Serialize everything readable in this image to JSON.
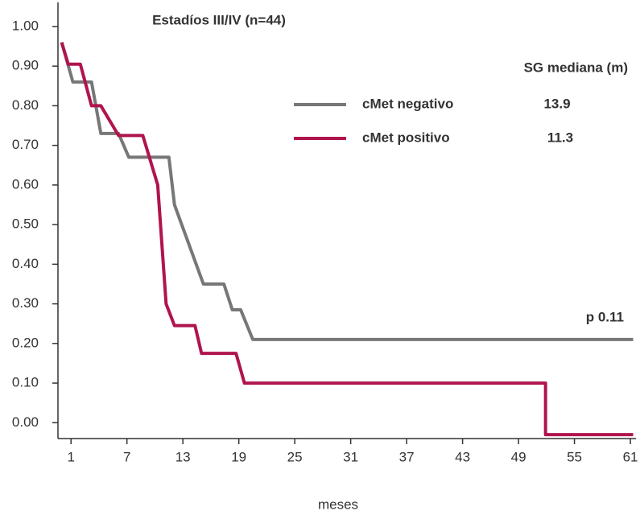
{
  "chart_data": {
    "type": "line",
    "title": "Estadíos III/IV (n=44)",
    "xlabel": "meses",
    "legend_title": "SG mediana (m)",
    "annotation": "p 0.11",
    "xlim": [
      -0.4,
      61.6
    ],
    "ylim": [
      -0.04,
      1.06
    ],
    "xticks": [
      1,
      7,
      13,
      19,
      25,
      31,
      37,
      43,
      49,
      55,
      61
    ],
    "yticks": [
      {
        "value": 0,
        "label": "0.00"
      },
      {
        "value": 0.1,
        "label": "0.10"
      },
      {
        "value": 0.2,
        "label": "0.20"
      },
      {
        "value": 0.3,
        "label": "0.30"
      },
      {
        "value": 0.4,
        "label": "0.40"
      },
      {
        "value": 0.5,
        "label": "0.50"
      },
      {
        "value": 0.6,
        "label": "0.60"
      },
      {
        "value": 0.7,
        "label": "0.70"
      },
      {
        "value": 0.8,
        "label": "0.80"
      },
      {
        "value": 0.9,
        "label": "0.90"
      },
      {
        "value": 1,
        "label": "1.00"
      }
    ],
    "series": [
      {
        "name": "cMet negativo",
        "color": "#777777",
        "median": 13.9,
        "x": [
          0,
          1.2,
          3.2,
          4.2,
          6.1,
          7.2,
          11.5,
          12.1,
          15.2,
          17.4,
          18.3,
          19.2,
          20.5,
          61.3
        ],
        "values": [
          0.96,
          0.86,
          0.86,
          0.73,
          0.73,
          0.67,
          0.67,
          0.55,
          0.35,
          0.35,
          0.285,
          0.285,
          0.21,
          0.21
        ]
      },
      {
        "name": "cMet positivo",
        "color": "#b0144f",
        "median": 11.3,
        "x": [
          0,
          0.7,
          2.0,
          3.2,
          4.2,
          6.1,
          8.7,
          10.3,
          11.2,
          12.1,
          14.3,
          15.0,
          18.7,
          19.6,
          51.9,
          51.9,
          61.3
        ],
        "values": [
          0.96,
          0.905,
          0.905,
          0.8,
          0.8,
          0.725,
          0.725,
          0.6,
          0.3,
          0.245,
          0.245,
          0.175,
          0.175,
          0.1,
          0.1,
          -0.03,
          -0.03
        ]
      }
    ]
  }
}
